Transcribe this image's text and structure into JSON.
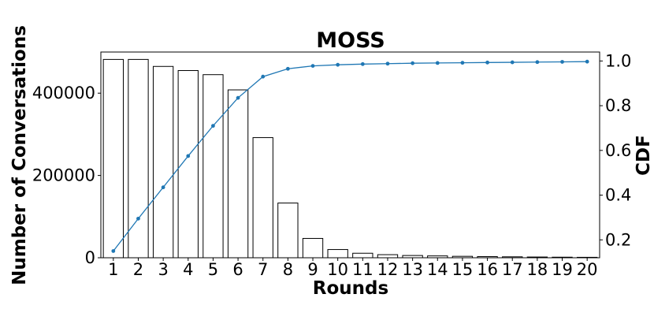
{
  "chart_data": {
    "type": "bar",
    "title": "MOSS",
    "xlabel": "Rounds",
    "ylabel": "Number of Conversations",
    "y2label": "CDF",
    "categories": [
      "1",
      "2",
      "3",
      "4",
      "5",
      "6",
      "7",
      "8",
      "9",
      "10",
      "11",
      "12",
      "13",
      "14",
      "15",
      "16",
      "17",
      "18",
      "19",
      "20"
    ],
    "ylim": [
      0,
      500000
    ],
    "y_ticks": [
      0,
      200000,
      400000
    ],
    "y2lim": [
      0.12,
      1.04
    ],
    "y2_ticks": [
      0.2,
      0.4,
      0.6,
      0.8,
      1.0
    ],
    "grid": false,
    "series": [
      {
        "type": "bar",
        "values": [
          482000,
          482000,
          465000,
          455000,
          445000,
          408000,
          292000,
          133000,
          47000,
          20000,
          11000,
          7500,
          5500,
          4500,
          3500,
          2800,
          2300,
          1800,
          1400,
          1100
        ],
        "color": "#ffffff",
        "edge_color": "#000000"
      },
      {
        "type": "line",
        "axis": "right",
        "values": [
          0.15,
          0.295,
          0.435,
          0.575,
          0.71,
          0.835,
          0.93,
          0.965,
          0.978,
          0.983,
          0.986,
          0.988,
          0.99,
          0.991,
          0.992,
          0.993,
          0.994,
          0.995,
          0.996,
          0.997
        ],
        "color": "#1f77b4"
      }
    ]
  }
}
